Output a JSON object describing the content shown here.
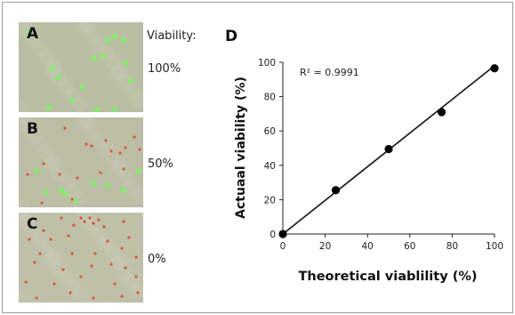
{
  "panels": [
    {
      "label": "A",
      "percent": "100%",
      "bg": "#b9bea3"
    },
    {
      "label": "B",
      "percent": "50%",
      "bg": "#bbbda4"
    },
    {
      "label": "C",
      "percent": "0%",
      "bg": "#bfc0a8"
    }
  ],
  "viability_label": "Viability:",
  "colors": {
    "live_cell": "#6dff52",
    "dead_cell": "#e0553f",
    "frame": "#9a9a9a"
  },
  "chart_data": {
    "type": "scatter",
    "panel_label": "D",
    "x": [
      0,
      25,
      50,
      75,
      100
    ],
    "y": [
      0,
      25.5,
      49.5,
      71,
      96.5
    ],
    "trendline": {
      "x": [
        0,
        100
      ],
      "y": [
        0,
        98
      ]
    },
    "r2_label": "R² = 0.9991",
    "xlabel": "Theoretical viablility (%)",
    "ylabel": "Actuaal viability (%)",
    "xlim": [
      0,
      100
    ],
    "ylim": [
      0,
      100
    ],
    "xticks": [
      0,
      20,
      40,
      60,
      80,
      100
    ],
    "yticks": [
      0,
      20,
      40,
      60,
      80,
      100
    ],
    "grid": false,
    "legend": "none"
  }
}
